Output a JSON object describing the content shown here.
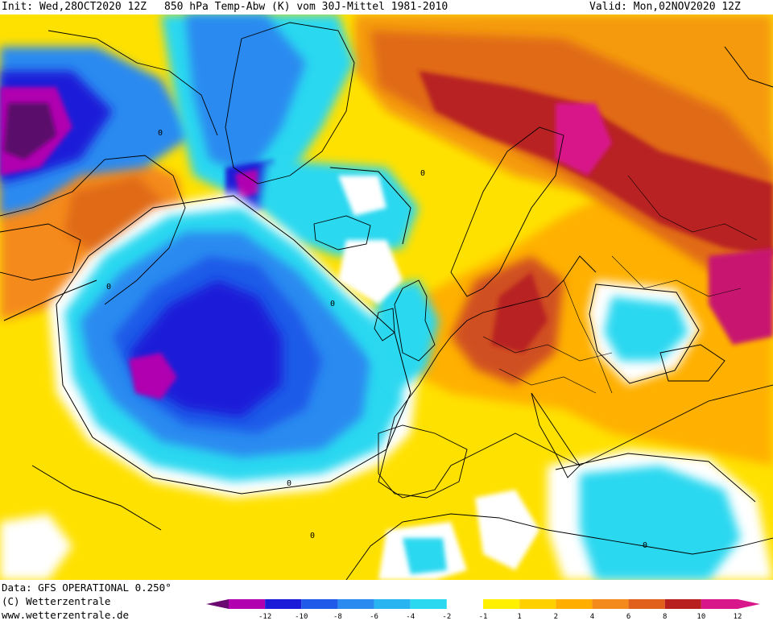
{
  "header": {
    "init": "Init: Wed,28OCT2020 12Z",
    "title": "850 hPa Temp-Abw (K) vom 30J-Mittel 1981-2010",
    "valid": "Valid: Mon,02NOV2020 12Z"
  },
  "footer": {
    "data_source": "Data: GFS OPERATIONAL 0.250°",
    "copyright": "(C) Wetterzentrale",
    "url": "www.wetterzentrale.de"
  },
  "legend": {
    "ticks": [
      "-12",
      "-10",
      "-8",
      "-6",
      "-4",
      "-2",
      "-1",
      "1",
      "2",
      "4",
      "6",
      "8",
      "10",
      "12"
    ],
    "colors": [
      "#b000b0",
      "#1c1cd8",
      "#1f5ae8",
      "#2a8af0",
      "#28b4f0",
      "#2ad8f0",
      "#ffffff",
      "#fff000",
      "#ffd000",
      "#ffae00",
      "#f58a1c",
      "#e0601c",
      "#b82020",
      "#d8188a"
    ]
  },
  "colors": {
    "ocean_neutral": "#ffe800",
    "coast_line": "#000000"
  }
}
